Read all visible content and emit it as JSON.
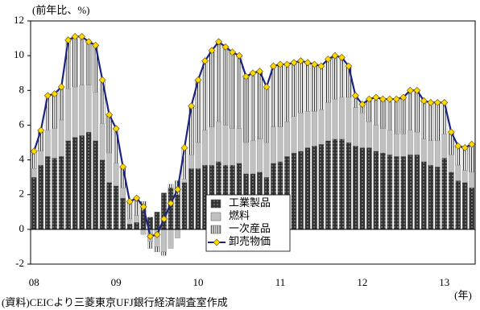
{
  "chart_data": {
    "type": "bar-line",
    "y_label": "(前年比、%)",
    "x_label": "(年)",
    "source": "(資料)CEICより三菱東京UFJ銀行経済調査室作成",
    "categories": [
      "08",
      null,
      null,
      null,
      null,
      null,
      null,
      null,
      null,
      null,
      null,
      null,
      "09",
      null,
      null,
      null,
      null,
      null,
      null,
      null,
      null,
      null,
      null,
      null,
      "10",
      null,
      null,
      null,
      null,
      null,
      null,
      null,
      null,
      null,
      null,
      null,
      "11",
      null,
      null,
      null,
      null,
      null,
      null,
      null,
      null,
      null,
      null,
      null,
      "12",
      null,
      null,
      null,
      null,
      null,
      null,
      null,
      null,
      null,
      null,
      null,
      "13",
      null,
      null,
      null,
      null
    ],
    "ylim": [
      -2,
      12
    ],
    "yticks": [
      -2,
      0,
      2,
      4,
      6,
      8,
      10,
      12
    ],
    "legend": "lower-center",
    "series": [
      {
        "name": "工業製品",
        "kind": "bar",
        "color": "#3a3a3a",
        "pattern": "dots",
        "values": [
          3.0,
          3.7,
          4.2,
          4.1,
          4.2,
          5.1,
          5.3,
          5.4,
          5.6,
          5.1,
          4.0,
          2.7,
          2.5,
          1.8,
          0.3,
          0.4,
          1.1,
          0.7,
          1.0,
          2.1,
          2.4,
          2.0,
          2.7,
          3.5,
          3.5,
          3.7,
          3.7,
          3.9,
          3.7,
          3.7,
          3.8,
          3.2,
          3.2,
          3.3,
          3.0,
          3.8,
          3.9,
          4.2,
          4.4,
          4.5,
          4.7,
          4.8,
          4.9,
          5.1,
          5.2,
          5.2,
          5.0,
          4.8,
          4.7,
          4.7,
          4.5,
          4.4,
          4.3,
          4.2,
          4.2,
          4.3,
          4.3,
          3.9,
          3.7,
          3.6,
          4.1,
          3.3,
          2.8,
          2.7,
          2.4
        ]
      },
      {
        "name": "燃料",
        "kind": "bar",
        "color": "#c0c0c0",
        "pattern": "solid",
        "values": [
          0.5,
          0.8,
          1.5,
          1.7,
          2.1,
          3.0,
          2.9,
          2.9,
          2.7,
          2.8,
          2.1,
          1.7,
          1.3,
          0.6,
          0.3,
          0.4,
          -0.3,
          -0.7,
          -1.0,
          -1.3,
          -1.1,
          -0.5,
          0.2,
          0.8,
          1.5,
          2.0,
          2.2,
          2.3,
          2.3,
          2.1,
          2.0,
          1.8,
          1.9,
          1.9,
          2.0,
          2.1,
          2.0,
          2.0,
          2.1,
          2.2,
          2.1,
          2.0,
          2.0,
          2.2,
          2.3,
          2.4,
          2.6,
          2.2,
          2.0,
          1.5,
          1.5,
          1.4,
          1.4,
          1.3,
          1.3,
          1.4,
          1.3,
          1.3,
          1.4,
          1.5,
          1.4,
          1.0,
          0.9,
          0.7,
          0.9
        ]
      },
      {
        "name": "一次産品",
        "kind": "bar",
        "color": "#ffffff",
        "pattern": "stripes",
        "values": [
          1.0,
          1.2,
          2.0,
          2.0,
          1.9,
          2.8,
          2.9,
          2.8,
          2.5,
          2.7,
          2.5,
          2.2,
          2.0,
          1.2,
          1.0,
          1.0,
          0.5,
          -0.4,
          -0.3,
          -0.2,
          0.2,
          0.8,
          1.8,
          2.8,
          3.6,
          4.0,
          4.4,
          4.6,
          4.5,
          4.4,
          4.2,
          3.8,
          3.9,
          3.9,
          3.2,
          3.5,
          3.6,
          3.3,
          3.1,
          3.0,
          2.8,
          2.7,
          2.5,
          2.5,
          2.5,
          2.3,
          1.8,
          0.7,
          0.5,
          1.3,
          1.6,
          1.7,
          1.8,
          2.0,
          2.1,
          2.3,
          2.4,
          2.2,
          2.2,
          2.2,
          1.8,
          1.3,
          1.1,
          1.3,
          1.6
        ]
      },
      {
        "name": "卸売物価",
        "kind": "line",
        "color": "#1a237e",
        "marker_color": "#ffd700",
        "values": [
          4.5,
          5.7,
          7.7,
          7.8,
          8.2,
          10.9,
          11.1,
          11.1,
          10.8,
          10.6,
          8.6,
          6.6,
          5.8,
          3.6,
          1.6,
          1.8,
          1.3,
          -0.4,
          -0.3,
          0.6,
          1.5,
          2.3,
          4.7,
          7.1,
          8.6,
          9.7,
          10.3,
          10.8,
          10.5,
          10.2,
          10.0,
          8.8,
          9.0,
          9.1,
          8.2,
          9.4,
          9.5,
          9.5,
          9.6,
          9.7,
          9.6,
          9.5,
          9.4,
          9.8,
          10.0,
          9.9,
          9.4,
          7.7,
          7.2,
          7.5,
          7.6,
          7.5,
          7.5,
          7.5,
          7.6,
          8.0,
          8.0,
          7.4,
          7.3,
          7.3,
          7.3,
          5.6,
          4.8,
          4.7,
          4.9
        ]
      }
    ]
  }
}
